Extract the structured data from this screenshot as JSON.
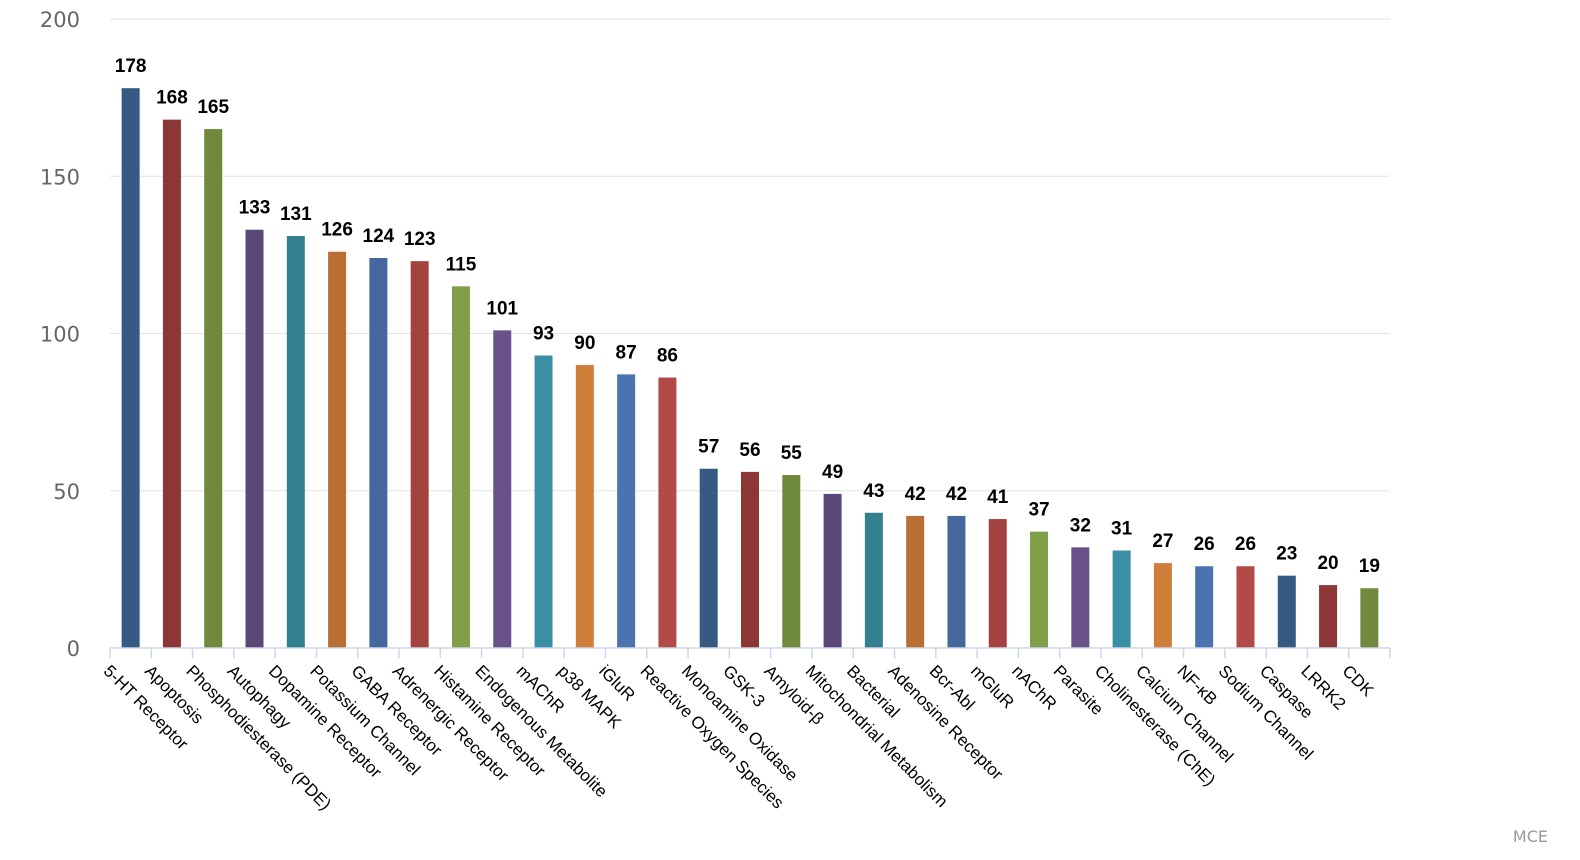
{
  "chart_data": {
    "type": "bar",
    "categories": [
      "5-HT Receptor",
      "Apoptosis",
      "Phosphodiesterase (PDE)",
      "Autophagy",
      "Dopamine Receptor",
      "Potassium Channel",
      "GABA Receptor",
      "Adrenergic Receptor",
      "Histamine Receptor",
      "Endogenous Metabolite",
      "mAChR",
      "p38 MAPK",
      "iGluR",
      "Reactive Oxygen Species",
      "Monoamine Oxidase",
      "GSK-3",
      "Amyloid-β",
      "Mitochondrial Metabolism",
      "Bacterial",
      "Adenosine Receptor",
      "Bcr-Abl",
      "mGluR",
      "nAChR",
      "Parasite",
      "Cholinesterase (ChE)",
      "Calcium Channel",
      "NF-κB",
      "Sodium Channel",
      "Caspase",
      "LRRK2",
      "CDK"
    ],
    "values": [
      178,
      168,
      165,
      133,
      131,
      126,
      124,
      123,
      115,
      101,
      93,
      90,
      87,
      86,
      57,
      56,
      55,
      49,
      43,
      42,
      42,
      41,
      37,
      32,
      31,
      27,
      26,
      26,
      23,
      20,
      19
    ],
    "data_labels": [
      "178",
      "168",
      "165",
      "133",
      "131",
      "126",
      "124",
      "123",
      "115",
      "101",
      "93",
      "90",
      "87",
      "86",
      "57",
      "56",
      "55",
      "49",
      "43",
      "42",
      "42",
      "41",
      "37",
      "32",
      "31",
      "27",
      "26",
      "26",
      "23",
      "20",
      "19"
    ],
    "ylim": [
      0,
      200
    ],
    "y_ticks": [
      "0",
      "50",
      "100",
      "150",
      "200"
    ],
    "grid": true,
    "legend": "none",
    "colors": [
      "#375a84",
      "#8c3736",
      "#6f8a3d",
      "#5b4876",
      "#33808f",
      "#b96f34",
      "#44689e",
      "#a3423f",
      "#7f9f48",
      "#6a5189",
      "#3b8fa4",
      "#d07f3a",
      "#4b73b0",
      "#b24b48"
    ],
    "title": "",
    "xlabel": "",
    "ylabel": ""
  },
  "credit": "MCE"
}
